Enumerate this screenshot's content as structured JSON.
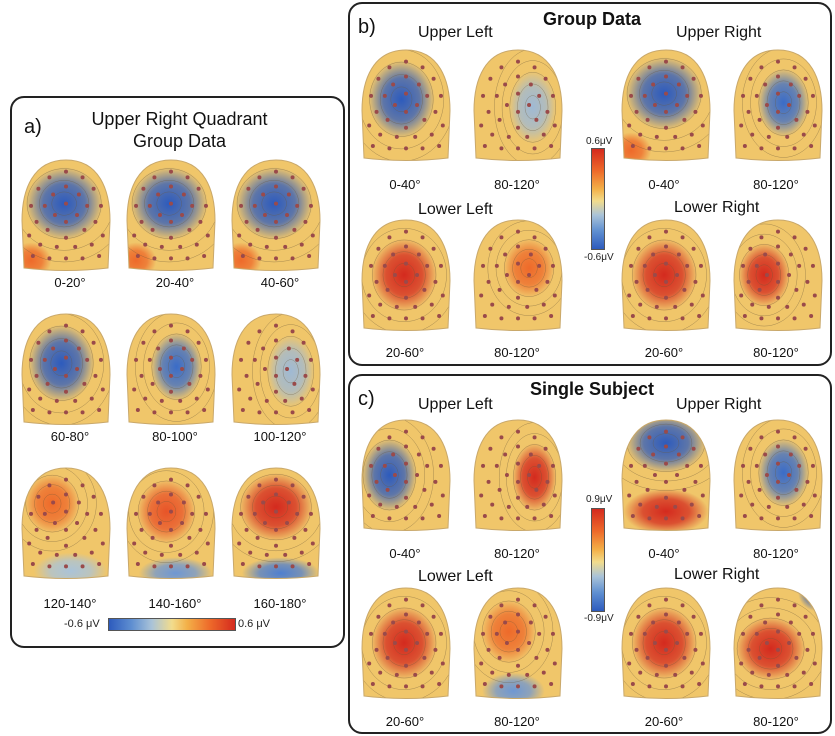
{
  "panel_a": {
    "letter": "a)",
    "title_line1": "Upper Right Quadrant",
    "title_line2": "Group Data",
    "maps": [
      {
        "label": "0-20°",
        "pattern": "blue-top"
      },
      {
        "label": "20-40°",
        "pattern": "blue-top"
      },
      {
        "label": "40-60°",
        "pattern": "blue-top"
      },
      {
        "label": "60-80°",
        "pattern": "blue-center"
      },
      {
        "label": "80-100°",
        "pattern": "blue-center-right"
      },
      {
        "label": "100-120°",
        "pattern": "weak-blue-right"
      },
      {
        "label": "120-140°",
        "pattern": "warm-top-left"
      },
      {
        "label": "140-160°",
        "pattern": "warm-center"
      },
      {
        "label": "160-180°",
        "pattern": "red-top"
      }
    ],
    "colorbar": {
      "min_label": "-0.6 μV",
      "max_label": "0.6 μV"
    }
  },
  "panel_b": {
    "letter": "b)",
    "title": "Group Data",
    "quadrants": {
      "upper_left": {
        "label": "Upper Left",
        "maps": [
          {
            "label": "0-40°",
            "pattern": "blue-center"
          },
          {
            "label": "80-120°",
            "pattern": "weak-blue-right"
          }
        ]
      },
      "upper_right": {
        "label": "Upper Right",
        "maps": [
          {
            "label": "0-40°",
            "pattern": "blue-top"
          },
          {
            "label": "80-120°",
            "pattern": "blue-center-right"
          }
        ]
      },
      "lower_left": {
        "label": "Lower Left",
        "maps": [
          {
            "label": "20-60°",
            "pattern": "red-center"
          },
          {
            "label": "80-120°",
            "pattern": "warm-center-right"
          }
        ]
      },
      "lower_right": {
        "label": "Lower Right",
        "maps": [
          {
            "label": "20-60°",
            "pattern": "red-center"
          },
          {
            "label": "80-120°",
            "pattern": "red-left"
          }
        ]
      }
    },
    "colorbar": {
      "max_label": "0.6μV",
      "min_label": "-0.6μV"
    }
  },
  "panel_c": {
    "letter": "c)",
    "title": "Single Subject",
    "quadrants": {
      "upper_left": {
        "label": "Upper Left",
        "maps": [
          {
            "label": "0-40°",
            "pattern": "blue-left"
          },
          {
            "label": "80-120°",
            "pattern": "red-right"
          }
        ]
      },
      "upper_right": {
        "label": "Upper Right",
        "maps": [
          {
            "label": "0-40°",
            "pattern": "blue-top-red-bottom"
          },
          {
            "label": "80-120°",
            "pattern": "blue-center-right"
          }
        ]
      },
      "lower_left": {
        "label": "Lower Left",
        "maps": [
          {
            "label": "20-60°",
            "pattern": "red-center"
          },
          {
            "label": "80-120°",
            "pattern": "warm-blue-bottom"
          }
        ]
      },
      "lower_right": {
        "label": "Lower Right",
        "maps": [
          {
            "label": "20-60°",
            "pattern": "red-center"
          },
          {
            "label": "80-120°",
            "pattern": "red-blue-corner"
          }
        ]
      }
    },
    "colorbar": {
      "max_label": "0.9μV",
      "min_label": "-0.9μV"
    }
  },
  "colors": {
    "negative": "#2d5bbd",
    "neutral": "#f2dc8c",
    "positive": "#d42a1e"
  }
}
